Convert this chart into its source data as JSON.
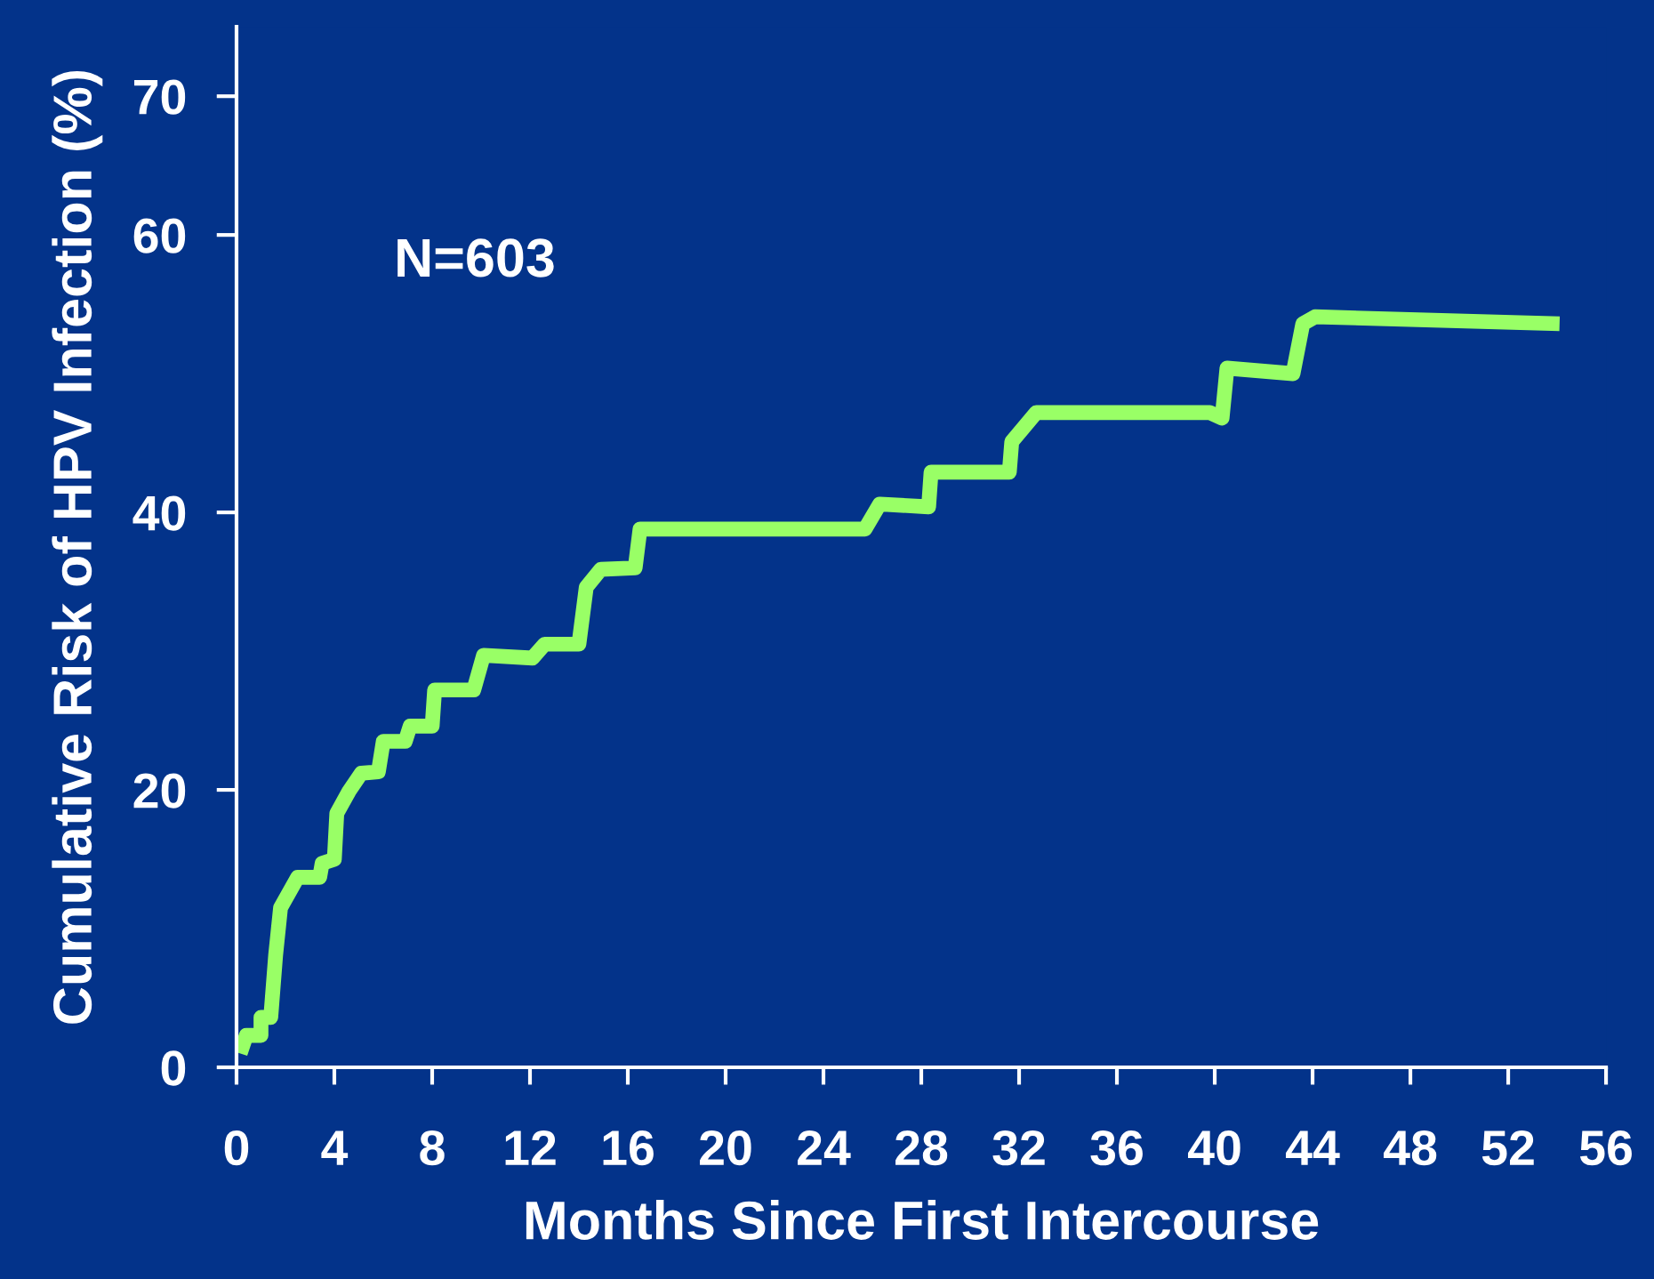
{
  "chart_data": {
    "type": "line",
    "xlabel": "Months Since First Intercourse",
    "ylabel": "Cumulative Risk of HPV Infection (%)",
    "annotations": [
      "N=603"
    ],
    "xlim": [
      0,
      56
    ],
    "xticks": [
      0,
      4,
      8,
      12,
      16,
      20,
      24,
      28,
      32,
      36,
      40,
      44,
      48,
      52,
      56
    ],
    "ylim": [
      0,
      75
    ],
    "yticks": [
      0,
      20,
      40,
      60,
      70
    ],
    "grid": false,
    "legend": false,
    "marker": "none",
    "line_style": "solid",
    "series": [
      {
        "color": "#99ff66",
        "x": [
          0.15,
          0.4,
          1.0,
          1.0,
          1.4,
          1.6,
          1.8,
          2.5,
          3.4,
          3.5,
          4.0,
          4.1,
          4.6,
          5.1,
          5.8,
          6.0,
          6.9,
          7.1,
          8.0,
          8.1,
          9.7,
          10.1,
          12.1,
          12.6,
          14.0,
          14.3,
          14.9,
          16.3,
          16.5,
          25.7,
          26.3,
          28.3,
          28.4,
          31.6,
          31.7,
          32.7,
          39.8,
          40.3,
          40.5,
          43.2,
          43.6,
          44.1,
          54.1
        ],
        "values": [
          1.0,
          2.3,
          2.3,
          3.6,
          3.6,
          8.1,
          11.5,
          13.7,
          13.7,
          14.7,
          15.0,
          18.3,
          19.9,
          21.2,
          21.3,
          23.5,
          23.5,
          24.6,
          24.6,
          27.2,
          27.2,
          29.7,
          29.5,
          30.5,
          30.5,
          34.6,
          35.9,
          36.0,
          38.8,
          38.8,
          40.6,
          40.4,
          42.9,
          42.9,
          45.1,
          47.2,
          47.2,
          46.8,
          50.4,
          50.0,
          53.6,
          54.1,
          53.6
        ]
      }
    ]
  }
}
